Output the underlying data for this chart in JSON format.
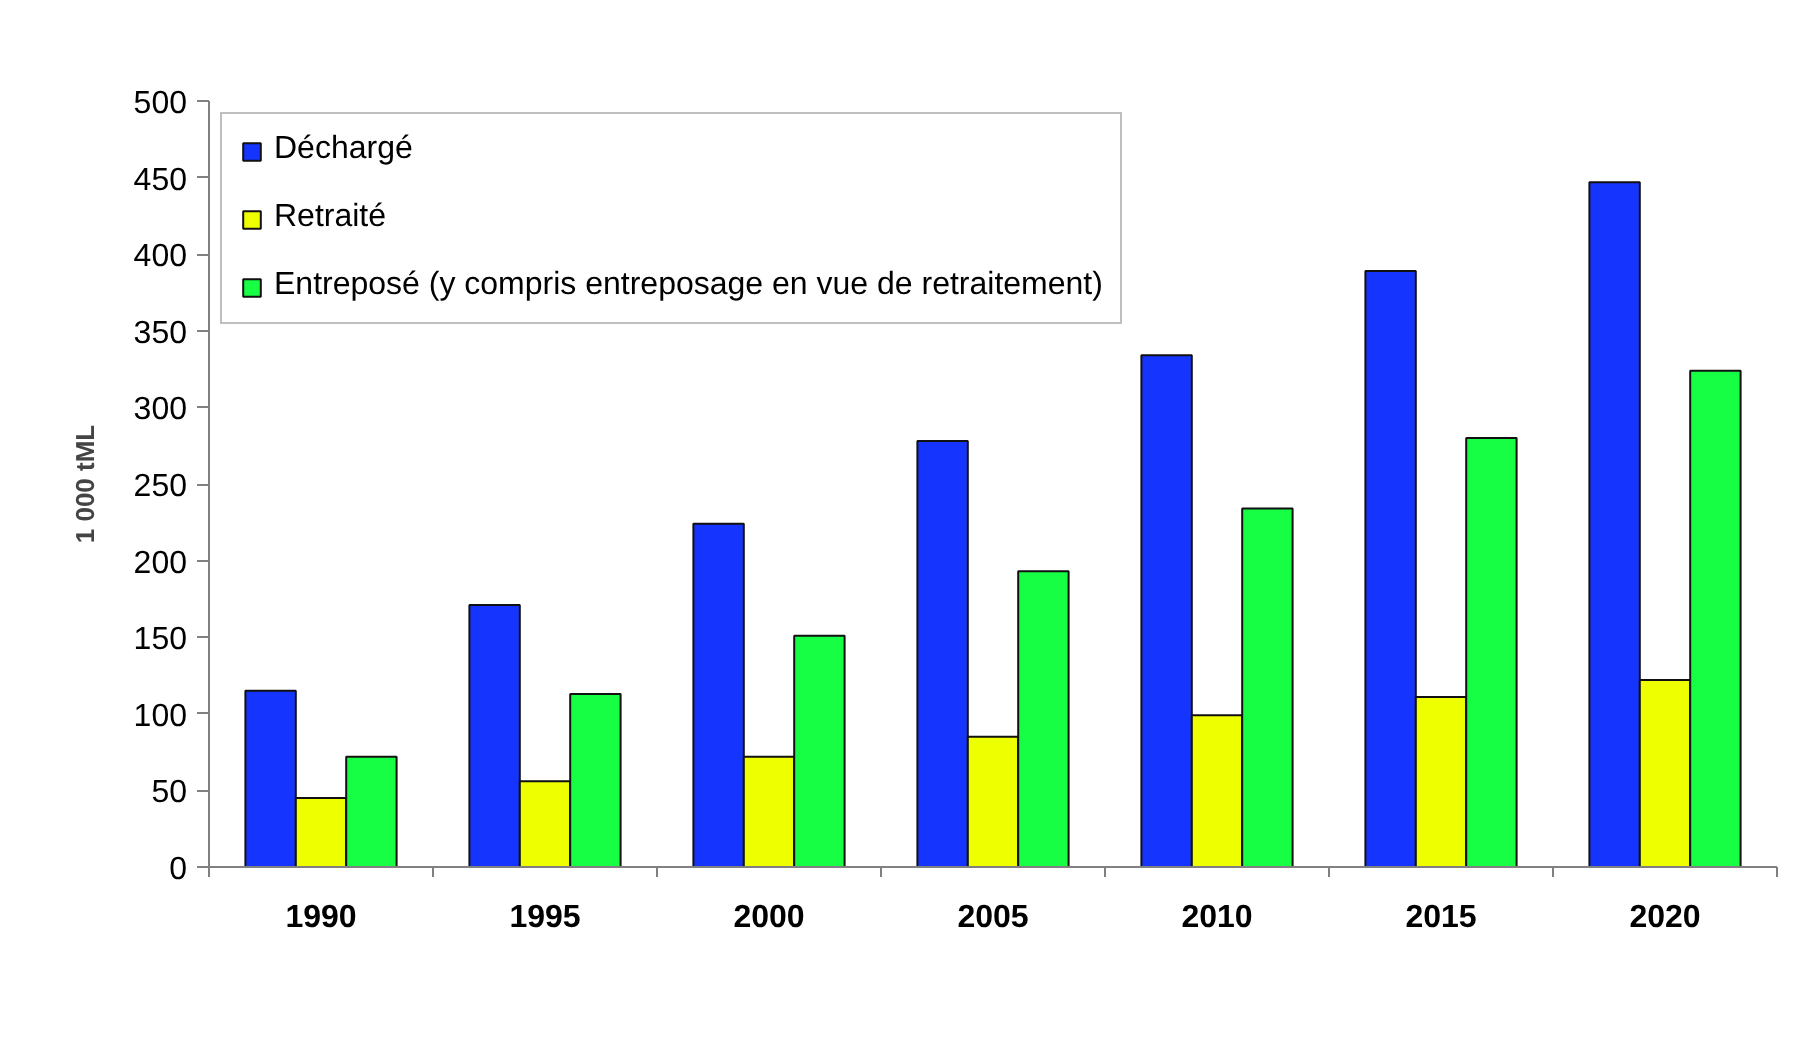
{
  "chart_data": {
    "type": "bar",
    "ylabel": "1 000 tML",
    "categories": [
      "1990",
      "1995",
      "2000",
      "2005",
      "2010",
      "2015",
      "2020"
    ],
    "series": [
      {
        "name": "Déchargé",
        "color": "#1535ff",
        "values": [
          115,
          171,
          224,
          278,
          334,
          389,
          447
        ]
      },
      {
        "name": "Retraité",
        "color": "#eeff00",
        "values": [
          45,
          56,
          72,
          85,
          99,
          111,
          122
        ]
      },
      {
        "name": "Entreposé (y compris entreposage en vue de retraitement)",
        "color": "#17ff45",
        "values": [
          72,
          113,
          151,
          193,
          234,
          280,
          324
        ]
      }
    ],
    "ylim": [
      0,
      500
    ],
    "yticks": [
      0,
      50,
      100,
      150,
      200,
      250,
      300,
      350,
      400,
      450,
      500
    ],
    "grid": false,
    "legend": "top left"
  }
}
